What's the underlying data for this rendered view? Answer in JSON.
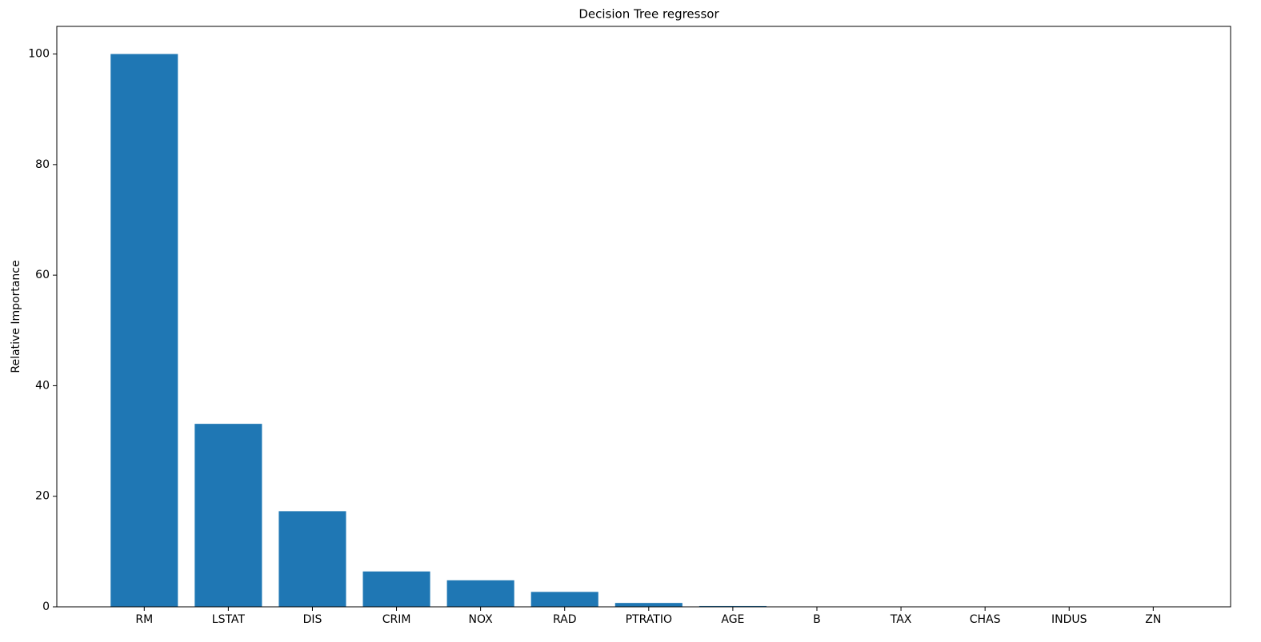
{
  "chart_data": {
    "type": "bar",
    "title": "Decision Tree regressor",
    "y_label": "Relative Importance",
    "categories": [
      "RM",
      "LSTAT",
      "DIS",
      "CRIM",
      "NOX",
      "RAD",
      "PTRATIO",
      "AGE",
      "B",
      "TAX",
      "CHAS",
      "INDUS",
      "ZN"
    ],
    "values": [
      100,
      33.1,
      17.3,
      6.4,
      4.8,
      2.7,
      0.7,
      0.15,
      0,
      0,
      0,
      0,
      0
    ],
    "color": "#1f77b4",
    "ylim": [
      0,
      105
    ],
    "yticks": [
      0,
      20,
      40,
      60,
      80,
      100
    ],
    "grid": false
  }
}
